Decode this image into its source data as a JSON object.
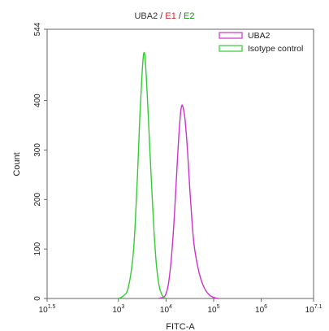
{
  "chart_data": {
    "type": "line",
    "title_parts": [
      {
        "text": "UBA2",
        "color": "#333333"
      },
      {
        "text": " / ",
        "color": "#333333"
      },
      {
        "text": "E1",
        "color": "#cc2222"
      },
      {
        "text": " / ",
        "color": "#333333"
      },
      {
        "text": "E2",
        "color": "#228822"
      }
    ],
    "xlabel": "FITC-A",
    "ylabel": "Count",
    "x_scale": "log",
    "xlim_log10": [
      1.5,
      7.1
    ],
    "ylim": [
      0,
      544
    ],
    "x_ticks": [
      {
        "base": "10",
        "exp": "1.5",
        "log10": 1.5
      },
      {
        "base": "10",
        "exp": "3",
        "log10": 3
      },
      {
        "base": "10",
        "exp": "4",
        "log10": 4
      },
      {
        "base": "10",
        "exp": "5",
        "log10": 5
      },
      {
        "base": "10",
        "exp": "6",
        "log10": 6
      },
      {
        "base": "10",
        "exp": "7.1",
        "log10": 7.1
      }
    ],
    "y_ticks": [
      {
        "label": "0",
        "value": 0
      },
      {
        "label": "100",
        "value": 100
      },
      {
        "label": "200",
        "value": 200
      },
      {
        "label": "300",
        "value": 300
      },
      {
        "label": "400",
        "value": 400
      },
      {
        "label": "544",
        "value": 544
      }
    ],
    "legend_position": "top-right",
    "series": [
      {
        "name": "UBA2",
        "color": "#cc33cc",
        "points": [
          [
            3.85,
            0
          ],
          [
            3.95,
            3
          ],
          [
            4.0,
            10
          ],
          [
            4.05,
            30
          ],
          [
            4.1,
            70
          ],
          [
            4.15,
            130
          ],
          [
            4.2,
            210
          ],
          [
            4.25,
            300
          ],
          [
            4.3,
            370
          ],
          [
            4.33,
            390
          ],
          [
            4.36,
            385
          ],
          [
            4.4,
            360
          ],
          [
            4.45,
            300
          ],
          [
            4.5,
            220
          ],
          [
            4.55,
            150
          ],
          [
            4.6,
            100
          ],
          [
            4.7,
            50
          ],
          [
            4.8,
            22
          ],
          [
            4.9,
            8
          ],
          [
            5.0,
            2
          ],
          [
            5.1,
            0
          ]
        ]
      },
      {
        "name": "Isotype control",
        "color": "#33cc33",
        "points": [
          [
            3.0,
            0
          ],
          [
            3.1,
            5
          ],
          [
            3.2,
            20
          ],
          [
            3.3,
            80
          ],
          [
            3.35,
            150
          ],
          [
            3.4,
            250
          ],
          [
            3.45,
            370
          ],
          [
            3.5,
            460
          ],
          [
            3.53,
            495
          ],
          [
            3.56,
            485
          ],
          [
            3.6,
            420
          ],
          [
            3.65,
            320
          ],
          [
            3.7,
            220
          ],
          [
            3.75,
            130
          ],
          [
            3.8,
            65
          ],
          [
            3.85,
            28
          ],
          [
            3.9,
            10
          ],
          [
            3.95,
            3
          ],
          [
            4.0,
            0
          ]
        ]
      }
    ]
  }
}
